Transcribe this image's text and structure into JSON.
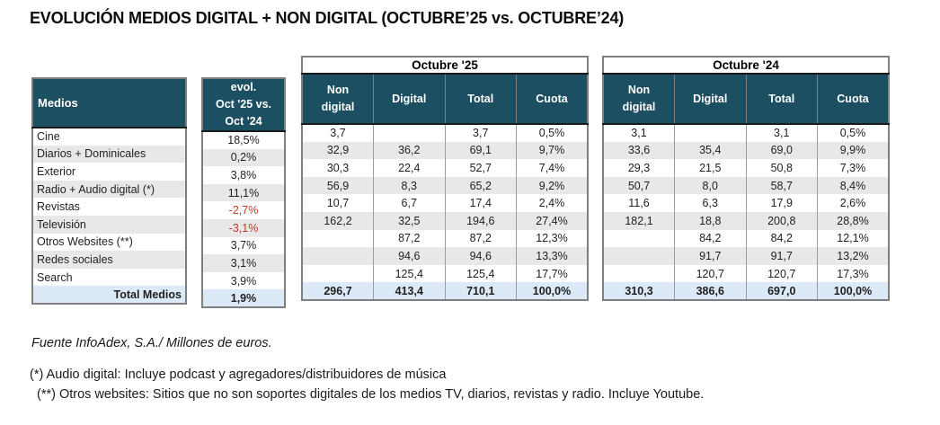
{
  "title": "EVOLUCIÓN MEDIOS DIGITAL + NON DIGITAL (OCTUBRE’25 vs. OCTUBRE’24)",
  "colors": {
    "header_bg": "#1d4f63",
    "header_text": "#ffffff",
    "negative_text": "#c0392b",
    "stripe_bg": "#e8e8e8",
    "total_row_bg": "#dce9f6",
    "outer_border": "#7f7f7f"
  },
  "medios_table": {
    "header": "Medios"
  },
  "evol_table": {
    "header": "evol.\nOct '25 vs.\nOct '24"
  },
  "oct25_table": {
    "group_header": "Octubre '25",
    "columns": [
      "Non digital",
      "Digital",
      "Total",
      "Cuota"
    ]
  },
  "oct24_table": {
    "group_header": "Octubre '24",
    "columns": [
      "Non digital",
      "Digital",
      "Total",
      "Cuota"
    ]
  },
  "rows": [
    {
      "medio": "Cine",
      "evol": "18,5%",
      "evol_negative": false,
      "oct25": [
        "3,7",
        "",
        "3,7",
        "0,5%"
      ],
      "oct24": [
        "3,1",
        "",
        "3,1",
        "0,5%"
      ]
    },
    {
      "medio": "Diarios + Dominicales",
      "evol": "0,2%",
      "evol_negative": false,
      "oct25": [
        "32,9",
        "36,2",
        "69,1",
        "9,7%"
      ],
      "oct24": [
        "33,6",
        "35,4",
        "69,0",
        "9,9%"
      ]
    },
    {
      "medio": "Exterior",
      "evol": "3,8%",
      "evol_negative": false,
      "oct25": [
        "30,3",
        "22,4",
        "52,7",
        "7,4%"
      ],
      "oct24": [
        "29,3",
        "21,5",
        "50,8",
        "7,3%"
      ]
    },
    {
      "medio": "Radio + Audio digital (*)",
      "evol": "11,1%",
      "evol_negative": false,
      "oct25": [
        "56,9",
        "8,3",
        "65,2",
        "9,2%"
      ],
      "oct24": [
        "50,7",
        "8,0",
        "58,7",
        "8,4%"
      ]
    },
    {
      "medio": "Revistas",
      "evol": "-2,7%",
      "evol_negative": true,
      "oct25": [
        "10,7",
        "6,7",
        "17,4",
        "2,4%"
      ],
      "oct24": [
        "11,6",
        "6,3",
        "17,9",
        "2,6%"
      ]
    },
    {
      "medio": "Televisión",
      "evol": "-3,1%",
      "evol_negative": true,
      "oct25": [
        "162,2",
        "32,5",
        "194,6",
        "27,4%"
      ],
      "oct24": [
        "182,1",
        "18,8",
        "200,8",
        "28,8%"
      ]
    },
    {
      "medio": "Otros Websites (**)",
      "evol": "3,7%",
      "evol_negative": false,
      "oct25": [
        "",
        "87,2",
        "87,2",
        "12,3%"
      ],
      "oct24": [
        "",
        "84,2",
        "84,2",
        "12,1%"
      ]
    },
    {
      "medio": "Redes sociales",
      "evol": "3,1%",
      "evol_negative": false,
      "oct25": [
        "",
        "94,6",
        "94,6",
        "13,3%"
      ],
      "oct24": [
        "",
        "91,7",
        "91,7",
        "13,2%"
      ]
    },
    {
      "medio": "Search",
      "evol": "3,9%",
      "evol_negative": false,
      "oct25": [
        "",
        "125,4",
        "125,4",
        "17,7%"
      ],
      "oct24": [
        "",
        "120,7",
        "120,7",
        "17,3%"
      ]
    }
  ],
  "total_row": {
    "medio": "Total Medios",
    "evol": "1,9%",
    "oct25": [
      "296,7",
      "413,4",
      "710,1",
      "100,0%"
    ],
    "oct24": [
      "310,3",
      "386,6",
      "697,0",
      "100,0%"
    ]
  },
  "footnotes": {
    "source": "Fuente InfoAdex, S.A./ Millones de euros.",
    "note1": "(*) Audio digital: Incluye podcast y agregadores/distribuidores de música",
    "note2": "(**) Otros websites: Sitios que no son soportes digitales de los medios TV, diarios, revistas y radio. Incluye Youtube."
  }
}
